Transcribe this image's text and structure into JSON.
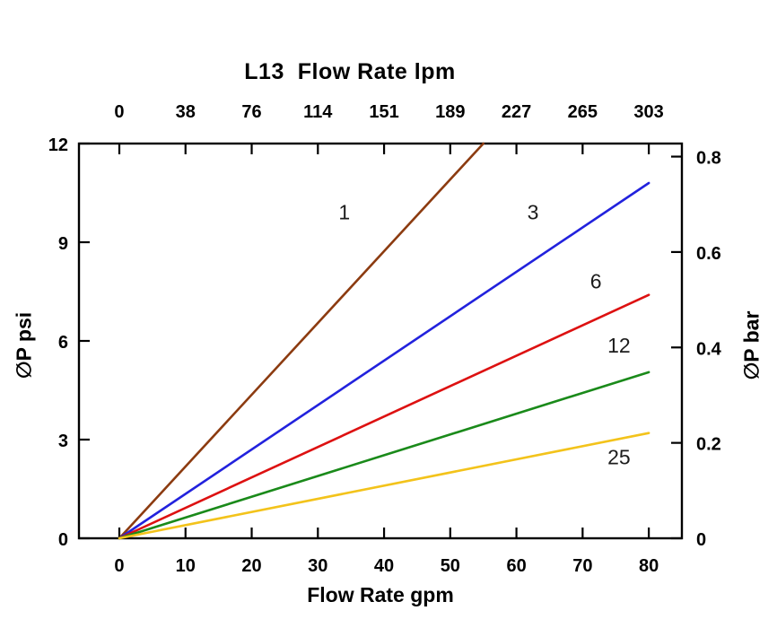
{
  "chart_data": {
    "type": "line",
    "title": "L13  Flow Rate lpm",
    "grid": false,
    "legend": "inline-curve-labels",
    "xlim": [
      -6.1,
      85
    ],
    "ylim": [
      0,
      12
    ],
    "x_axis": {
      "label": "Flow Rate gpm",
      "tick_values": [
        0,
        10,
        20,
        30,
        40,
        50,
        60,
        70,
        80
      ],
      "tick_labels": [
        "0",
        "10",
        "20",
        "30",
        "40",
        "50",
        "60",
        "70",
        "80"
      ]
    },
    "top_axis": {
      "units": "lpm",
      "tick_labels": [
        "0",
        "38",
        "76",
        "114",
        "151",
        "189",
        "227",
        "265",
        "303"
      ]
    },
    "y_axis": {
      "label": "∅P psi",
      "tick_values": [
        0,
        3,
        6,
        9,
        12
      ],
      "tick_labels": [
        "0",
        "3",
        "6",
        "9",
        "12"
      ]
    },
    "right_axis": {
      "label": "∅P bar",
      "tick_values": [
        0,
        0.2,
        0.4,
        0.6,
        0.8
      ],
      "tick_labels": [
        "0",
        "0.2",
        "0.4",
        "0.6",
        "0.8"
      ],
      "psi_per_bar": 14.5038
    },
    "series": [
      {
        "name": "1",
        "color": "#8c3b10",
        "points": [
          [
            0,
            0
          ],
          [
            55,
            12
          ]
        ]
      },
      {
        "name": "3",
        "color": "#2222dd",
        "points": [
          [
            0,
            0
          ],
          [
            80,
            10.8
          ]
        ]
      },
      {
        "name": "6",
        "color": "#dd1111",
        "points": [
          [
            0,
            0
          ],
          [
            80,
            7.4
          ]
        ]
      },
      {
        "name": "12",
        "color": "#1a8a1a",
        "points": [
          [
            0,
            0
          ],
          [
            80,
            5.05
          ]
        ]
      },
      {
        "name": "25",
        "color": "#f3c31b",
        "points": [
          [
            0,
            0
          ],
          [
            80,
            3.2
          ]
        ]
      }
    ],
    "series_labels": [
      {
        "text": "1",
        "gpm": 34,
        "psi": 9.7
      },
      {
        "text": "3",
        "gpm": 62.5,
        "psi": 9.7
      },
      {
        "text": "6",
        "gpm": 72,
        "psi": 7.6
      },
      {
        "text": "12",
        "gpm": 75.5,
        "psi": 5.65
      },
      {
        "text": "25",
        "gpm": 75.5,
        "psi": 2.25
      }
    ]
  }
}
